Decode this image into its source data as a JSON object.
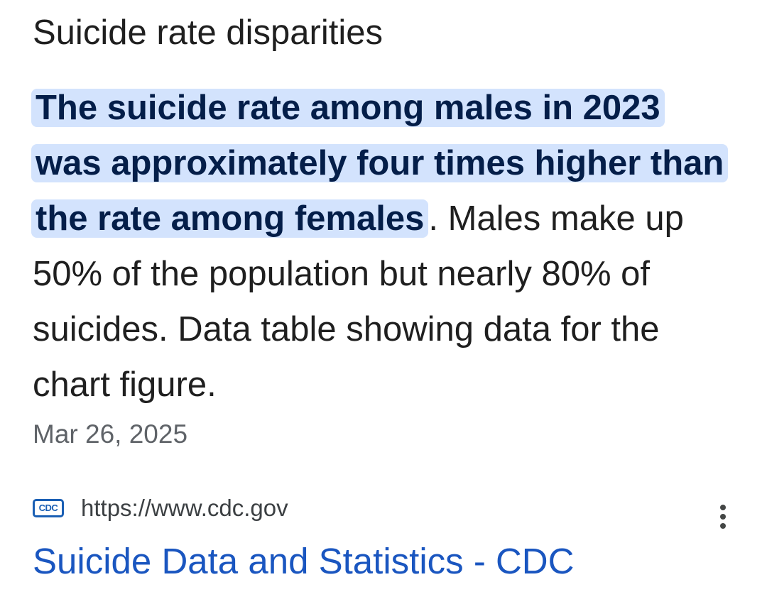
{
  "snippet": {
    "heading": "Suicide rate disparities",
    "highlight": "The suicide rate among males in 2023 was approximately four times higher than the rate among females",
    "rest": ". Males make up 50% of the population but nearly 80% of suicides. Data table showing data for the chart figure.",
    "date": "Mar 26, 2025"
  },
  "source": {
    "favicon_text": "CDC",
    "url": "https://www.cdc.gov",
    "title": "Suicide Data and Statistics - CDC",
    "menu_icon": "more-vert-icon"
  },
  "colors": {
    "highlight_bg": "#d3e3fd",
    "highlight_text": "#041e49",
    "link": "#1a56c0",
    "secondary_text": "#5f6368"
  }
}
